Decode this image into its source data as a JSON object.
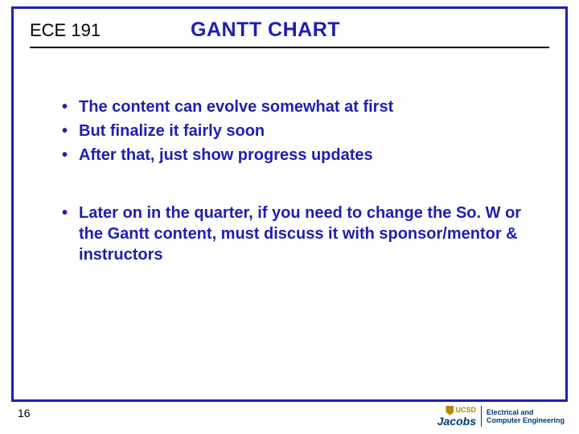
{
  "header": {
    "course_code": "ECE 191",
    "title": "GANTT CHART"
  },
  "content": {
    "group1": [
      "The content can evolve somewhat at first",
      "But finalize it fairly soon",
      "After that, just show progress updates"
    ],
    "group2": [
      "Later on in the quarter, if you need to change the So. W or the Gantt content, must discuss it with sponsor/mentor & instructors"
    ]
  },
  "footer": {
    "page_number": "16",
    "logo": {
      "ucsd": "UCSD",
      "jacobs": "Jacobs",
      "dept_line1": "Electrical and",
      "dept_line2": "Computer Engineering"
    }
  },
  "colors": {
    "frame_border": "#1f1eb0",
    "title_text": "#1f1eb0",
    "bullet_text": "#1f1eb0",
    "underline": "#000000",
    "ucsd_gold": "#b8860b",
    "jacobs_blue": "#003a70"
  }
}
